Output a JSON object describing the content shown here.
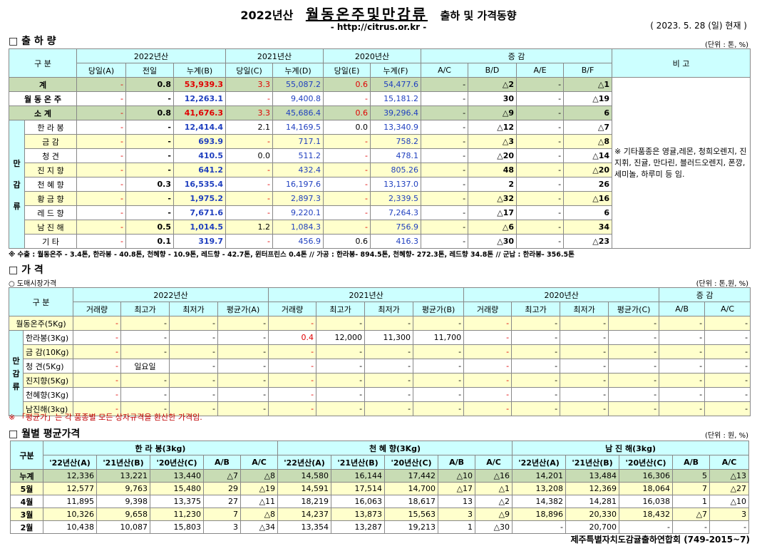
{
  "header": {
    "title_year": "2022년산",
    "title_main": "월동온주및만감류",
    "title_sub": "출하 및 가격동향",
    "url": "- http://citrus.or.kr -",
    "date": "( 2023.  5.  28 (일) 현재 )"
  },
  "shipment": {
    "section_title": "□ 출 하 량",
    "unit": "(단위 : 톤, %)",
    "col_gubun": "구    분",
    "col_2022": "2022년산",
    "col_2021": "2021년산",
    "col_2020": "2020년산",
    "col_change": "증      감",
    "col_remark": "비 고",
    "sub": [
      "당일(A)",
      "전일",
      "누계(B)",
      "당일(C)",
      "누계(D)",
      "당일(E)",
      "누계(F)",
      "A/C",
      "B/D",
      "A/E",
      "B/F"
    ],
    "side_label": [
      "만",
      "감",
      "류"
    ],
    "rows": [
      {
        "name": "계",
        "v": [
          "-",
          "0.8",
          "53,939.3",
          "3.3",
          "55,087.2",
          "0.6",
          "54,477.6",
          "-",
          "△2",
          "-",
          "△1"
        ]
      },
      {
        "name": "월 동 온 주",
        "v": [
          "-",
          "-",
          "12,263.1",
          "-",
          "9,400.8",
          "-",
          "15,181.2",
          "-",
          "30",
          "-",
          "△19"
        ]
      },
      {
        "name": "소    계",
        "v": [
          "-",
          "0.8",
          "41,676.3",
          "3.3",
          "45,686.4",
          "0.6",
          "39,296.4",
          "-",
          "△9",
          "-",
          "6"
        ]
      },
      {
        "name": "한 라 봉",
        "v": [
          "-",
          "-",
          "12,414.4",
          "2.1",
          "14,169.5",
          "0.0",
          "13,340.9",
          "-",
          "△12",
          "-",
          "△7"
        ]
      },
      {
        "name": "금    감",
        "v": [
          "-",
          "-",
          "693.9",
          "-",
          "717.1",
          "-",
          "758.2",
          "-",
          "△3",
          "-",
          "△8"
        ]
      },
      {
        "name": "청    견",
        "v": [
          "-",
          "-",
          "410.5",
          "0.0",
          "511.2",
          "-",
          "478.1",
          "-",
          "△20",
          "-",
          "△14"
        ]
      },
      {
        "name": "진 지 향",
        "v": [
          "-",
          "-",
          "641.2",
          "-",
          "432.4",
          "-",
          "805.26",
          "-",
          "48",
          "-",
          "△20"
        ]
      },
      {
        "name": "천 혜 향",
        "v": [
          "-",
          "0.3",
          "16,535.4",
          "-",
          "16,197.6",
          "-",
          "13,137.0",
          "-",
          "2",
          "-",
          "26"
        ]
      },
      {
        "name": "황 금 향",
        "v": [
          "-",
          "-",
          "1,975.2",
          "-",
          "2,897.3",
          "-",
          "2,339.5",
          "-",
          "△32",
          "-",
          "△16"
        ]
      },
      {
        "name": "레 드 향",
        "v": [
          "-",
          "-",
          "7,671.6",
          "-",
          "9,220.1",
          "-",
          "7,264.3",
          "-",
          "△17",
          "-",
          "6"
        ]
      },
      {
        "name": "남 진 해",
        "v": [
          "-",
          "0.5",
          "1,014.5",
          "1.2",
          "1,084.3",
          "-",
          "756.9",
          "-",
          "△6",
          "-",
          "34"
        ]
      },
      {
        "name": "기    타",
        "v": [
          "-",
          "0.1",
          "319.7",
          "-",
          "456.9",
          "0.6",
          "416.3",
          "-",
          "△30",
          "-",
          "△23"
        ]
      }
    ],
    "remark": "※ 기타품종은 영귤,레몬, 청희오렌지, 진지휘, 진귤, 만다린, 블러드오렌지, 폰깡,세미놀, 하루미 등 임.",
    "footnote": "※ 수출 : 월동온주 - 3.4톤, 한라봉 - 40.8톤, 천혜향 - 10.9톤, 레드향 - 42.7톤, 윈터프린스 0.4톤 //  가공  :  한라봉- 894.5톤, 천혜향- 272.3톤, 레드향 34.8톤  //  군납 : 한라봉- 356.5톤"
  },
  "price": {
    "section_title": "□ 가    격",
    "subsection": "○ 도매시장가격",
    "unit": "(단위 : 톤,원, %)",
    "col_gubun": "구    분",
    "col_2022": "2022년산",
    "col_2021": "2021년산",
    "col_2020": "2020년산",
    "col_change": "증    감",
    "sub": [
      "거래량",
      "최고가",
      "최저가",
      "평균가(A)",
      "거래량",
      "최고가",
      "최저가",
      "평균가(B)",
      "거래량",
      "최고가",
      "최저가",
      "평균가(C)",
      "A/B",
      "A/C"
    ],
    "side_label": [
      "만",
      "감",
      "류"
    ],
    "rows": [
      {
        "name": "월동온주(5Kg)",
        "v": [
          "-",
          "-",
          "-",
          "-",
          "-",
          "-",
          "-",
          "-",
          "-",
          "-",
          "-",
          "-",
          "-",
          "-"
        ]
      },
      {
        "name": "한라봉(3Kg)",
        "v": [
          "-",
          "-",
          "-",
          "-",
          "0.4",
          "12,000",
          "11,300",
          "11,700",
          "-",
          "-",
          "-",
          "-",
          "-",
          "-"
        ]
      },
      {
        "name": "금 감(10Kg)",
        "v": [
          "-",
          "-",
          "-",
          "-",
          "-",
          "-",
          "-",
          "-",
          "-",
          "-",
          "-",
          "-",
          "-",
          "-"
        ]
      },
      {
        "name": "청  견(5Kg)",
        "v": [
          "-",
          "일요일",
          "-",
          "-",
          "-",
          "-",
          "-",
          "-",
          "-",
          "-",
          "-",
          "-",
          "-",
          "-"
        ]
      },
      {
        "name": "진지향(5Kg)",
        "v": [
          "-",
          "-",
          "-",
          "-",
          "-",
          "-",
          "-",
          "-",
          "-",
          "-",
          "-",
          "-",
          "-",
          "-"
        ]
      },
      {
        "name": "천혜향(3Kg)",
        "v": [
          "-",
          "-",
          "-",
          "-",
          "-",
          "-",
          "-",
          "-",
          "-",
          "-",
          "-",
          "-",
          "-",
          "-"
        ]
      },
      {
        "name": "남진해(3kg)",
        "v": [
          "-",
          "-",
          "-",
          "-",
          "-",
          "-",
          "-",
          "-",
          "-",
          "-",
          "-",
          "-",
          "-",
          "-"
        ]
      }
    ],
    "footnote": "※ 「평균가」는 각 품종별 모든 상자규격을 환산한 가격임."
  },
  "monthly": {
    "section_title": "□ 월별 평균가격",
    "unit": "(단위 : 원, %)",
    "col_gubun": "구분",
    "groups": [
      "한 라 봉(3kg)",
      "천 혜 향(3Kg)",
      "남 진 해(3kg)"
    ],
    "sub": [
      "'22년산(A)",
      "'21년산(B)",
      "'20년산(C)",
      "A/B",
      "A/C"
    ],
    "rows": [
      {
        "name": "누계",
        "v": [
          "12,336",
          "13,221",
          "13,440",
          "△7",
          "△8",
          "14,580",
          "16,144",
          "17,442",
          "△10",
          "△16",
          "14,201",
          "13,484",
          "16,306",
          "5",
          "△13"
        ]
      },
      {
        "name": "5월",
        "v": [
          "12,577",
          "9,763",
          "15,480",
          "29",
          "△19",
          "14,591",
          "17,514",
          "14,700",
          "△17",
          "△1",
          "13,208",
          "12,369",
          "18,064",
          "7",
          "△27"
        ]
      },
      {
        "name": "4월",
        "v": [
          "11,895",
          "9,398",
          "13,375",
          "27",
          "△11",
          "18,219",
          "16,063",
          "18,617",
          "13",
          "△2",
          "14,382",
          "14,281",
          "16,038",
          "1",
          "△10"
        ]
      },
      {
        "name": "3월",
        "v": [
          "10,326",
          "9,658",
          "11,230",
          "7",
          "△8",
          "14,237",
          "13,873",
          "15,563",
          "3",
          "△9",
          "18,896",
          "20,330",
          "18,432",
          "△7",
          "3"
        ]
      },
      {
        "name": "2월",
        "v": [
          "10,438",
          "10,087",
          "15,803",
          "3",
          "△34",
          "13,354",
          "13,287",
          "19,213",
          "1",
          "△30",
          "-",
          "20,700",
          "-",
          "-",
          "-"
        ]
      }
    ]
  },
  "footer": "제주특별자치도감귤출하연합회 (749-2015~7)"
}
